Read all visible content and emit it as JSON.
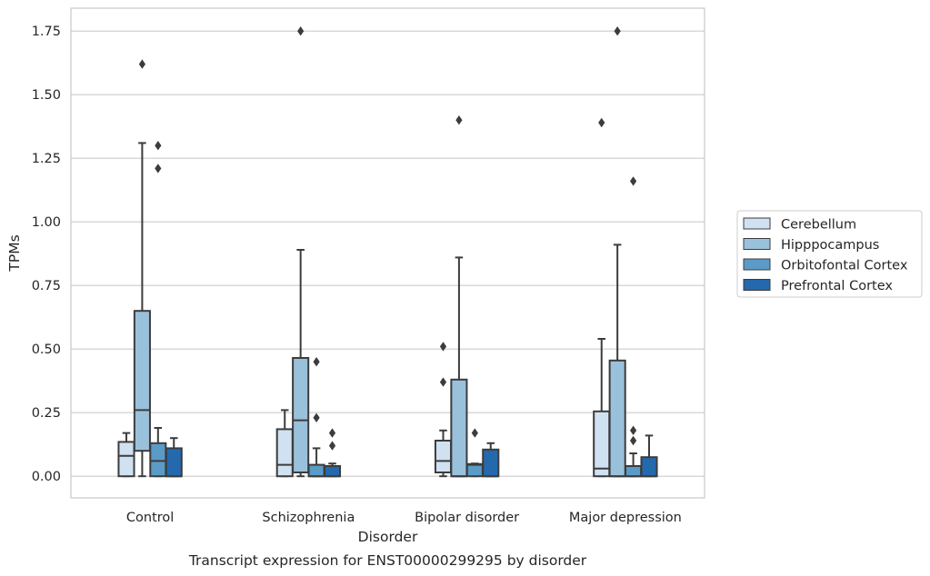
{
  "chart_data": {
    "type": "box",
    "xlabel": "Disorder",
    "ylabel": "TPMs",
    "caption": "Transcript expression for ENST00000299295 by disorder",
    "categories": [
      "Control",
      "Schizophrenia",
      "Bipolar disorder",
      "Major depression"
    ],
    "ylim": [
      -0.085,
      1.84
    ],
    "yticks": [
      0.0,
      0.25,
      0.5,
      0.75,
      1.0,
      1.25,
      1.5,
      1.75
    ],
    "ytick_labels": [
      "0.00",
      "0.25",
      "0.50",
      "0.75",
      "1.00",
      "1.25",
      "1.50",
      "1.75"
    ],
    "grid": "horizontal",
    "legend_position": "right",
    "series": [
      {
        "name": "Cerebellum",
        "color": "#d0e1f2",
        "boxes": [
          {
            "whislo": 0.0,
            "q1": 0.0,
            "med": 0.08,
            "q3": 0.135,
            "whishi": 0.17,
            "fliers": []
          },
          {
            "whislo": 0.0,
            "q1": 0.0,
            "med": 0.045,
            "q3": 0.185,
            "whishi": 0.26,
            "fliers": []
          },
          {
            "whislo": 0.0,
            "q1": 0.015,
            "med": 0.06,
            "q3": 0.14,
            "whishi": 0.18,
            "fliers": [
              0.37,
              0.51
            ]
          },
          {
            "whislo": 0.0,
            "q1": 0.0,
            "med": 0.03,
            "q3": 0.255,
            "whishi": 0.54,
            "fliers": [
              1.39
            ]
          }
        ]
      },
      {
        "name": "Hipppocampus",
        "color": "#9ac1dc",
        "boxes": [
          {
            "whislo": 0.0,
            "q1": 0.1,
            "med": 0.26,
            "q3": 0.65,
            "whishi": 1.31,
            "fliers": [
              1.62
            ]
          },
          {
            "whislo": 0.0,
            "q1": 0.015,
            "med": 0.22,
            "q3": 0.465,
            "whishi": 0.89,
            "fliers": [
              1.75
            ]
          },
          {
            "whislo": 0.0,
            "q1": 0.0,
            "med": 0.0,
            "q3": 0.38,
            "whishi": 0.86,
            "fliers": [
              1.4
            ]
          },
          {
            "whislo": 0.0,
            "q1": 0.0,
            "med": 0.0,
            "q3": 0.455,
            "whishi": 0.91,
            "fliers": [
              1.75
            ]
          }
        ]
      },
      {
        "name": "Orbitofontal Cortex",
        "color": "#5b9bc8",
        "boxes": [
          {
            "whislo": 0.0,
            "q1": 0.0,
            "med": 0.06,
            "q3": 0.13,
            "whishi": 0.19,
            "fliers": [
              1.21,
              1.3
            ]
          },
          {
            "whislo": 0.0,
            "q1": 0.0,
            "med": 0.0,
            "q3": 0.045,
            "whishi": 0.11,
            "fliers": [
              0.23,
              0.45
            ]
          },
          {
            "whislo": 0.0,
            "q1": 0.0,
            "med": 0.045,
            "q3": 0.048,
            "whishi": 0.05,
            "fliers": [
              0.17
            ]
          },
          {
            "whislo": 0.0,
            "q1": 0.0,
            "med": 0.0,
            "q3": 0.04,
            "whishi": 0.09,
            "fliers": [
              0.14,
              0.18,
              1.16
            ]
          }
        ]
      },
      {
        "name": "Prefrontal Cortex",
        "color": "#2469ad",
        "boxes": [
          {
            "whislo": 0.0,
            "q1": 0.0,
            "med": 0.0,
            "q3": 0.11,
            "whishi": 0.15,
            "fliers": []
          },
          {
            "whislo": 0.0,
            "q1": 0.0,
            "med": 0.0,
            "q3": 0.04,
            "whishi": 0.05,
            "fliers": [
              0.12,
              0.17
            ]
          },
          {
            "whislo": 0.0,
            "q1": 0.0,
            "med": 0.0,
            "q3": 0.105,
            "whishi": 0.13,
            "fliers": []
          },
          {
            "whislo": 0.0,
            "q1": 0.0,
            "med": 0.0,
            "q3": 0.075,
            "whishi": 0.16,
            "fliers": []
          }
        ]
      }
    ]
  }
}
